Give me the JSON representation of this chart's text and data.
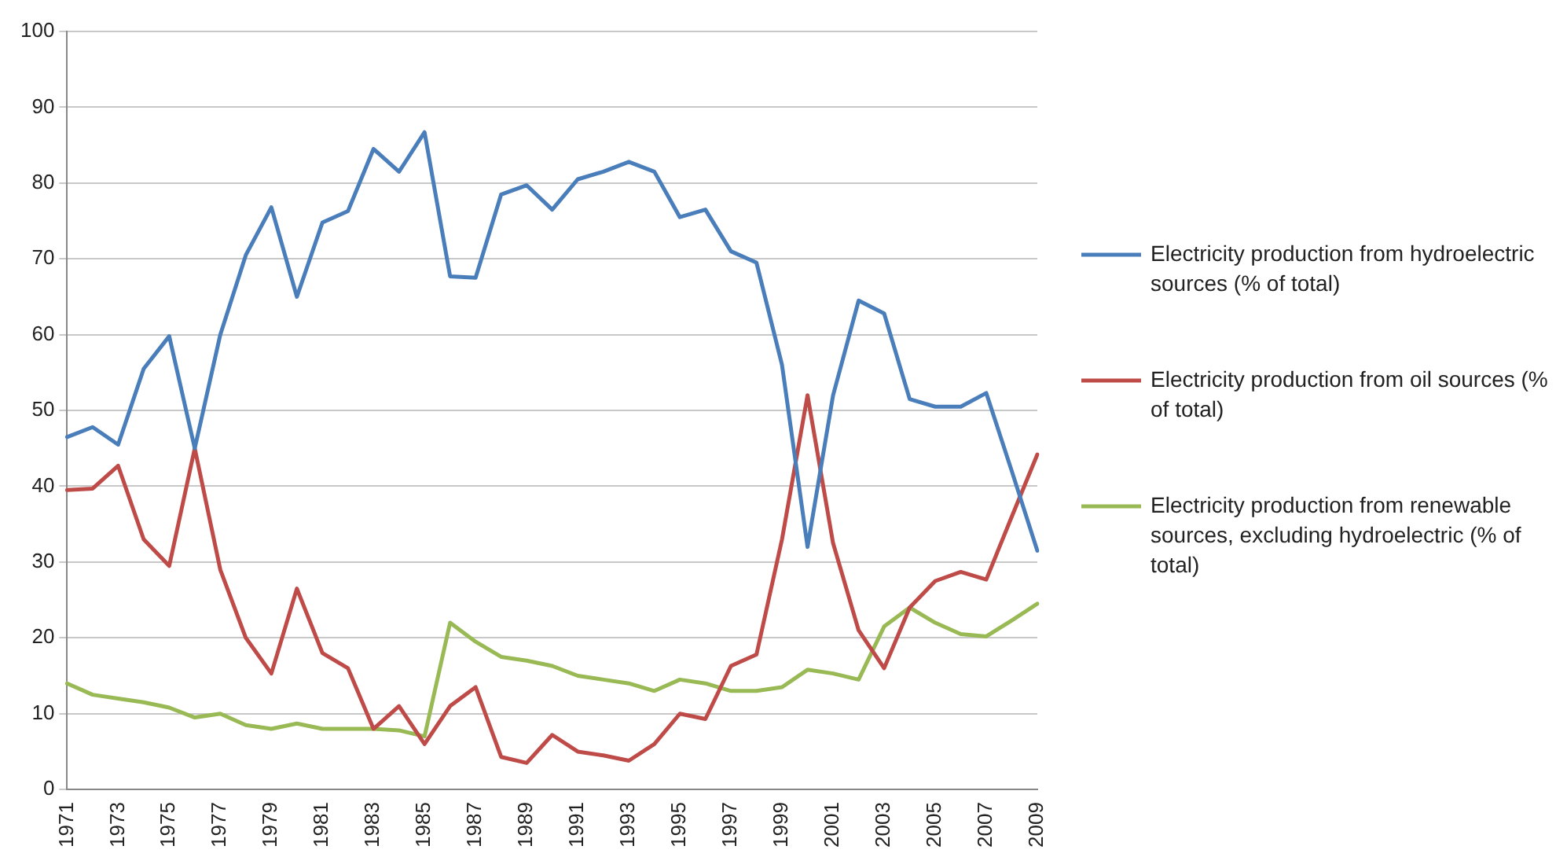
{
  "chart_data": {
    "type": "line",
    "categories": [
      "1971",
      null,
      "1973",
      null,
      "1975",
      null,
      "1977",
      null,
      "1979",
      null,
      "1981",
      null,
      "1983",
      null,
      "1985",
      null,
      "1987",
      null,
      "1989",
      null,
      "1991",
      null,
      "1993",
      null,
      "1995",
      null,
      "1997",
      null,
      "1999",
      null,
      "2001",
      null,
      "2003",
      null,
      "2005",
      null,
      "2007",
      null,
      "2009"
    ],
    "series": [
      {
        "name": "Electricity production from hydroelectric sources (% of total)",
        "color": "#4a7ebb",
        "values": [
          46.5,
          47.8,
          45.5,
          55.5,
          59.8,
          45,
          60,
          70.5,
          76.8,
          65,
          74.8,
          76.3,
          84.5,
          81.5,
          86.7,
          67.7,
          67.5,
          78.5,
          79.7,
          76.5,
          80.5,
          81.5,
          82.8,
          81.5,
          75.5,
          76.5,
          71,
          69.5,
          56,
          32,
          52,
          64.5,
          62.8,
          51.5,
          50.5,
          50.5,
          52.3,
          42,
          31.5
        ]
      },
      {
        "name": "Electricity production from oil sources (% of total)",
        "color": "#be4b48",
        "values": [
          39.5,
          39.7,
          42.7,
          33,
          29.5,
          45,
          29,
          20,
          15.3,
          26.5,
          18,
          16,
          8,
          11,
          6,
          11,
          13.5,
          4.3,
          3.5,
          7.2,
          5,
          4.5,
          3.8,
          6,
          10,
          9.3,
          16.3,
          17.8,
          33,
          52,
          32.5,
          21,
          16,
          24,
          27.5,
          28.7,
          27.7,
          36,
          44.2
        ]
      },
      {
        "name": "Electricity production from renewable sources, excluding hydroelectric (% of total)",
        "color": "#98b954",
        "values": [
          14,
          12.5,
          12,
          11.5,
          10.8,
          9.5,
          10,
          8.5,
          8,
          8.7,
          8,
          8,
          8,
          7.8,
          7,
          22,
          19.5,
          17.5,
          17,
          16.3,
          15,
          14.5,
          14,
          13,
          14.5,
          14,
          13,
          13,
          13.5,
          15.8,
          15.3,
          14.5,
          21.5,
          24,
          22,
          20.5,
          20.2,
          22.3,
          24.5
        ]
      }
    ],
    "ylim": [
      0,
      100
    ],
    "yticks": [
      0,
      10,
      20,
      30,
      40,
      50,
      60,
      70,
      80,
      90,
      100
    ],
    "grid": "y",
    "legend": "right",
    "marker": "none",
    "line_style": "solid"
  }
}
